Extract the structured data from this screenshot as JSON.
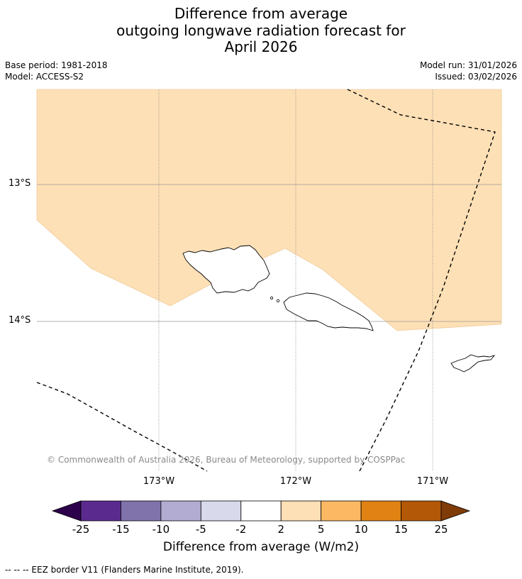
{
  "title": {
    "line1": "Difference from average",
    "line2": "outgoing longwave radiation forecast for",
    "line3": "April 2026"
  },
  "meta": {
    "base_period": "Base period: 1981-2018",
    "model": "Model: ACCESS-S2",
    "model_run": "Model run: 31/01/2026",
    "issued": "Issued: 03/02/2026"
  },
  "axes": {
    "lat_labels": [
      "13°S",
      "14°S"
    ],
    "lon_labels": [
      "173°W",
      "172°W",
      "171°W"
    ]
  },
  "credit": "© Commonwealth of Australia 2026, Bureau of Meteorology, supported by COSPPac",
  "colorbar": {
    "ticks": [
      "-25",
      "-15",
      "-10",
      "-5",
      "-2",
      "2",
      "5",
      "10",
      "15",
      "25"
    ],
    "colors": [
      "#2d004b",
      "#5b2a8e",
      "#8073ac",
      "#b2abd2",
      "#d8daeb",
      "#ffffff",
      "#fee0b6",
      "#fdb863",
      "#e08214",
      "#b35806",
      "#7f3b08"
    ],
    "label": "Difference from average (W/m2)"
  },
  "legend": "-- -- -- EEZ border V11 (Flanders Marine Institute, 2019)."
}
